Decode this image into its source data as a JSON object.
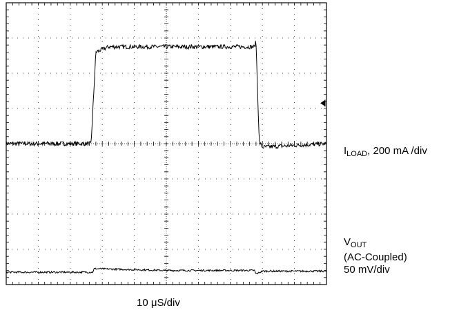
{
  "chart_data": {
    "type": "line",
    "grid": true,
    "x_divisions": 10,
    "y_divisions": 8,
    "timebase": {
      "value": "10",
      "unit": "μS/div"
    },
    "series": [
      {
        "name_main": "I",
        "name_sub": "LOAD",
        "scale_text": ", 200 mA /div",
        "level_divisions": [
          [
            0,
            0
          ],
          [
            2.65,
            0
          ],
          [
            2.8,
            2.6
          ],
          [
            3.2,
            2.75
          ],
          [
            7.75,
            2.75
          ],
          [
            7.8,
            2.9
          ],
          [
            7.9,
            0.05
          ],
          [
            8.0,
            -0.1
          ],
          [
            10,
            0
          ]
        ],
        "noise_divisions": 0.06
      },
      {
        "name_main": "V",
        "name_sub": "OUT",
        "line2": "(AC-Coupled)",
        "line3": "50 mV/div",
        "level_divisions": [
          [
            0,
            -3.65
          ],
          [
            2.7,
            -3.65
          ],
          [
            2.75,
            -3.55
          ],
          [
            5,
            -3.6
          ],
          [
            7.75,
            -3.6
          ],
          [
            7.8,
            -3.7
          ],
          [
            8.0,
            -3.62
          ],
          [
            10,
            -3.62
          ]
        ],
        "noise_divisions": 0.025
      }
    ],
    "marker": "trigger-arrow-icon"
  }
}
